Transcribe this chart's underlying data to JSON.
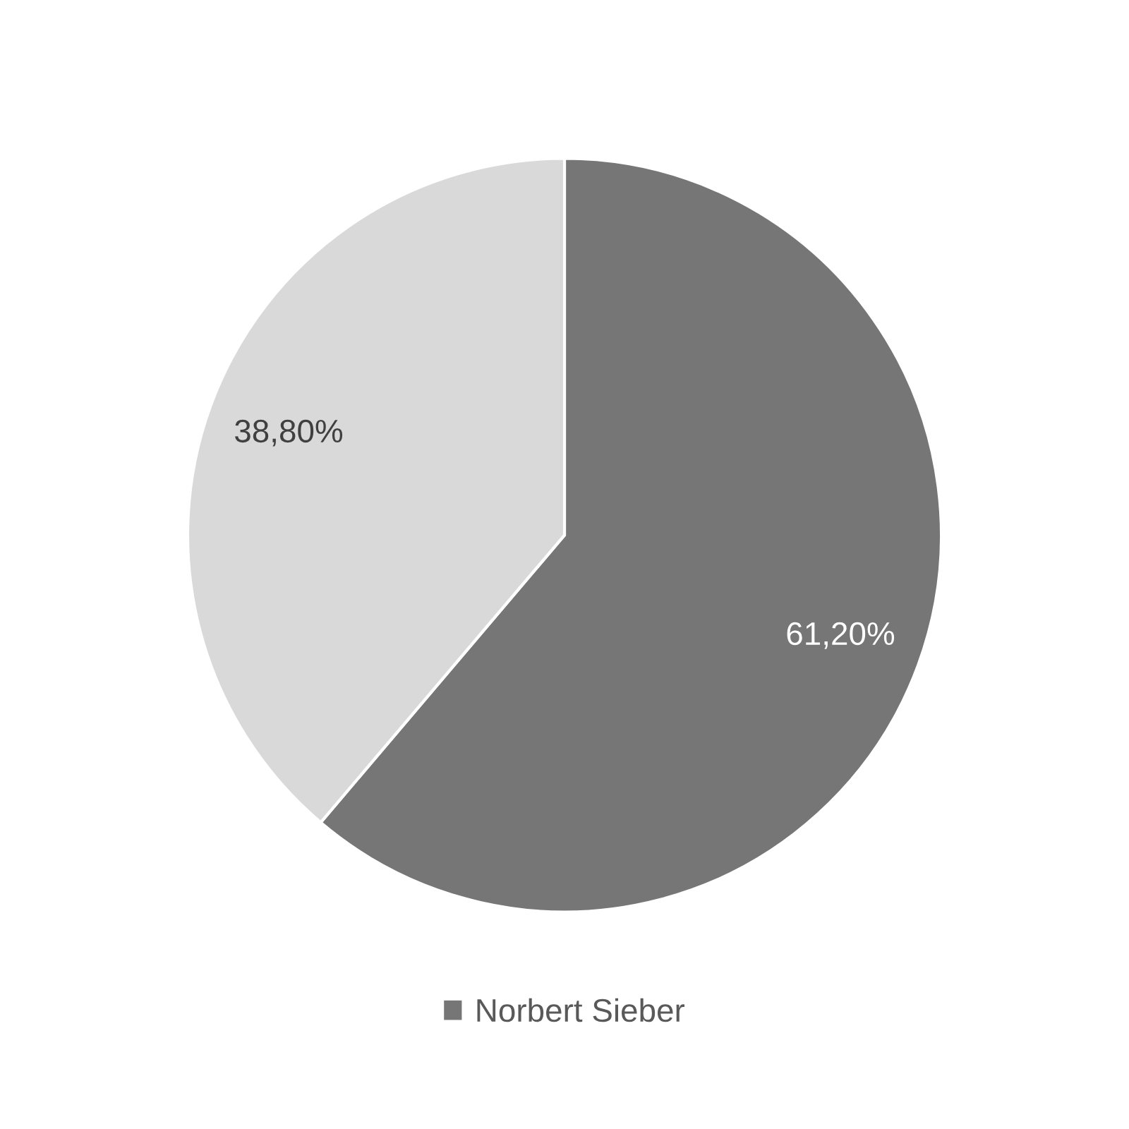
{
  "chart_data": {
    "type": "pie",
    "categories": [
      "Norbert Sieber",
      null
    ],
    "values": [
      61.2,
      38.8
    ],
    "colors": [
      "#767676",
      "#d9d9d9"
    ],
    "value_labels": [
      "61,20%",
      "38,80%"
    ],
    "legend": "bottom"
  }
}
